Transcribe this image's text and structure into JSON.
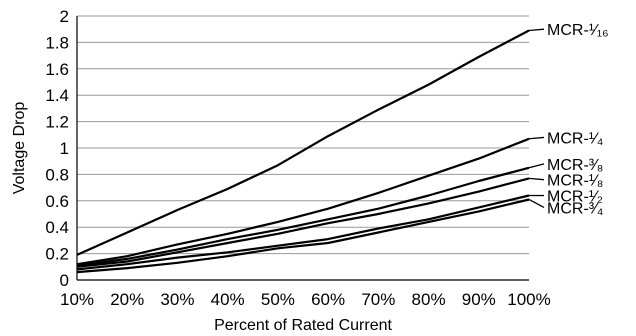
{
  "chart_data": {
    "type": "line",
    "xlabel": "Percent of Rated Current",
    "ylabel": "Voltage Drop",
    "x": [
      10,
      20,
      30,
      40,
      50,
      60,
      70,
      80,
      90,
      100
    ],
    "x_tick_labels": [
      "10%",
      "20%",
      "30%",
      "40%",
      "50%",
      "60%",
      "70%",
      "80%",
      "90%",
      "100%"
    ],
    "y_ticks": [
      0,
      0.2,
      0.4,
      0.6,
      0.8,
      1,
      1.2,
      1.4,
      1.6,
      1.8,
      2
    ],
    "y_tick_labels": [
      "0",
      "0.2",
      "0.4",
      "0.6",
      "0.8",
      "1",
      "1.2",
      "1.4",
      "1.6",
      "1.8",
      "2"
    ],
    "ylim": [
      0,
      2
    ],
    "xlim": [
      10,
      100
    ],
    "grid": "horizontal",
    "legend": "none",
    "series": [
      {
        "name": "MCR-¹⁄₁₆",
        "values": [
          0.19,
          0.36,
          0.53,
          0.69,
          0.87,
          1.09,
          1.29,
          1.48,
          1.69,
          1.89
        ]
      },
      {
        "name": "MCR-¹⁄₄",
        "values": [
          0.12,
          0.18,
          0.27,
          0.35,
          0.44,
          0.54,
          0.66,
          0.79,
          0.92,
          1.07
        ]
      },
      {
        "name": "MCR-³⁄₈",
        "values": [
          0.11,
          0.16,
          0.23,
          0.31,
          0.38,
          0.46,
          0.54,
          0.64,
          0.75,
          0.85
        ]
      },
      {
        "name": "MCR-¹⁄₈",
        "values": [
          0.1,
          0.14,
          0.21,
          0.28,
          0.35,
          0.43,
          0.5,
          0.58,
          0.67,
          0.77
        ]
      },
      {
        "name": "MCR-¹⁄₂",
        "values": [
          0.08,
          0.12,
          0.17,
          0.21,
          0.26,
          0.31,
          0.39,
          0.46,
          0.55,
          0.64
        ]
      },
      {
        "name": "MCR-³⁄₄",
        "values": [
          0.06,
          0.09,
          0.13,
          0.18,
          0.24,
          0.28,
          0.36,
          0.44,
          0.52,
          0.61
        ]
      }
    ],
    "label_y": [
      1.9,
      1.08,
      0.88,
      0.76,
      0.64,
      0.55
    ]
  }
}
